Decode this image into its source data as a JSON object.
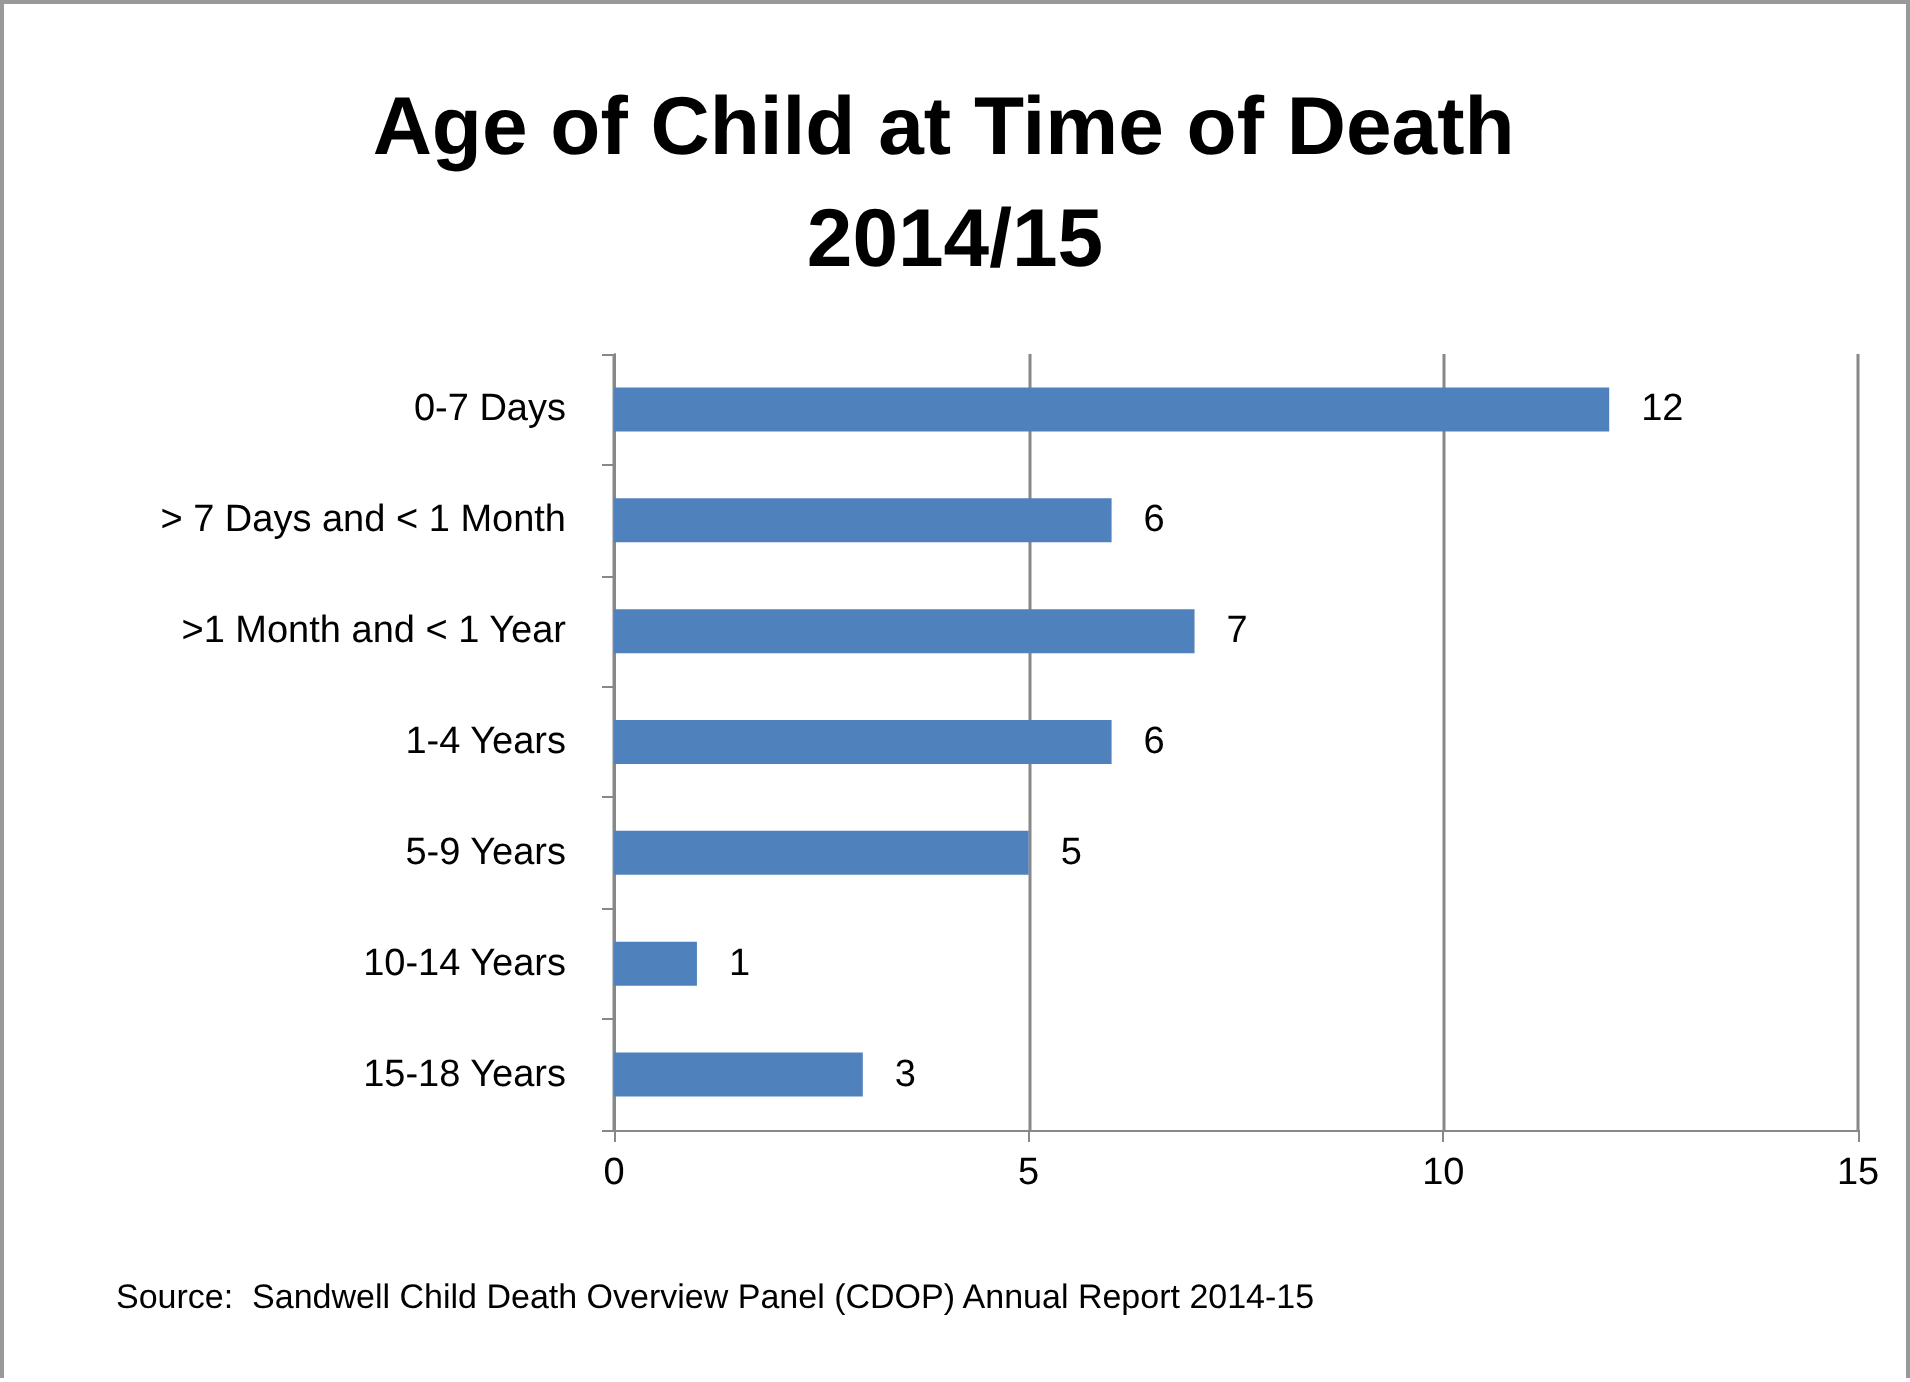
{
  "chart_data": {
    "type": "bar",
    "orientation": "horizontal",
    "title": "Age of Child at Time of Death 2014/15",
    "categories": [
      "0-7 Days",
      "> 7 Days and < 1 Month",
      ">1 Month and < 1 Year",
      "1-4 Years",
      "5-9 Years",
      "10-14 Years",
      "15-18 Years"
    ],
    "values": [
      12,
      6,
      7,
      6,
      5,
      1,
      3
    ],
    "color": "#4f81bd",
    "xlim": [
      0,
      15
    ],
    "xticks": [
      0,
      5,
      10,
      15
    ],
    "grid": "x",
    "data_labels": true,
    "annotations": [
      "Source:  Sandwell Child Death Overview Panel (CDOP) Annual Report 2014-15"
    ]
  }
}
